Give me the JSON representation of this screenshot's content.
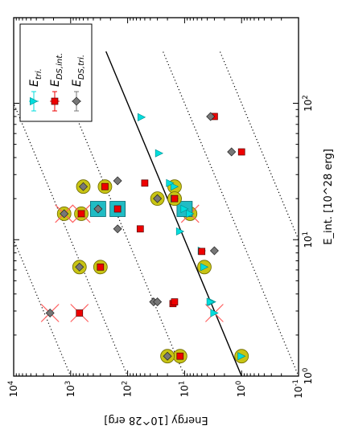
{
  "chart_data": {
    "type": "scatter",
    "title": "",
    "xlabel": "E_int. [10^28 erg]",
    "ylabel": "Energy [10^28 erg]",
    "x_scale": "log",
    "y_scale": "log",
    "xlim": [
      1,
      120
    ],
    "ylim": [
      0.1,
      10000
    ],
    "x_ticks": [
      {
        "value": 1,
        "label": "10^0"
      },
      {
        "value": 10,
        "label": "10^1"
      },
      {
        "value": 100,
        "label": "10^2"
      }
    ],
    "y_ticks": [
      {
        "value": 10000,
        "label": "10^4"
      },
      {
        "value": 1000,
        "label": "10^3"
      },
      {
        "value": 100,
        "label": "10^2"
      },
      {
        "value": 10,
        "label": "10^1"
      },
      {
        "value": 1,
        "label": "10^0"
      },
      {
        "value": 0.1,
        "label": "10^-1"
      }
    ],
    "legend": {
      "placement": "top-left",
      "entries": [
        {
          "series": "tri",
          "label": "E_tri."
        },
        {
          "series": "ds_int",
          "label": "E_DS,int."
        },
        {
          "series": "ds_tri",
          "label": "E_DS,tri."
        }
      ]
    },
    "colors": {
      "tri": "#00dddd",
      "ds_int": "#ee0000",
      "ds_tri": "#777777",
      "circle": "#c8c414",
      "circle_edge": "#6e6a00",
      "box": "#20bcc4",
      "cross": "#ff6060",
      "line": "#000000"
    },
    "reference_lines": {
      "solid_ratio": 1,
      "dotted_ratios": [
        0.01,
        0.1,
        10,
        100,
        1000
      ]
    },
    "series": [
      {
        "id": "tri",
        "points": [
          {
            "x": 1.4,
            "y": 1.0,
            "circle": true
          },
          {
            "x": 2.9,
            "y": 3.0,
            "cross": true
          },
          {
            "x": 3.5,
            "y": 3.3
          },
          {
            "x": 3.5,
            "y": 3.5
          },
          {
            "x": 6.3,
            "y": 4.5,
            "circle": true
          },
          {
            "x": 8.3,
            "y": 5.0
          },
          {
            "x": 11.5,
            "y": 12
          },
          {
            "x": 15.5,
            "y": 8,
            "circle": true,
            "cross": true
          },
          {
            "x": 16.8,
            "y": 10,
            "box": true
          },
          {
            "x": 20,
            "y": 15,
            "circle": true
          },
          {
            "x": 24.5,
            "y": 15,
            "circle": true
          },
          {
            "x": 26,
            "y": 18
          },
          {
            "x": 43,
            "y": 28
          },
          {
            "x": 79,
            "y": 57
          }
        ]
      },
      {
        "id": "ds_int",
        "points": [
          {
            "x": 1.4,
            "y": 12,
            "circle": true
          },
          {
            "x": 2.9,
            "y": 700,
            "cross": true
          },
          {
            "x": 3.4,
            "y": 16
          },
          {
            "x": 3.5,
            "y": 15
          },
          {
            "x": 6.3,
            "y": 300,
            "circle": true
          },
          {
            "x": 8.2,
            "y": 5
          },
          {
            "x": 12,
            "y": 60
          },
          {
            "x": 15.5,
            "y": 650,
            "circle": true,
            "cross": true
          },
          {
            "x": 16.8,
            "y": 150,
            "box": true
          },
          {
            "x": 20,
            "y": 15,
            "circle": true
          },
          {
            "x": 24.5,
            "y": 250,
            "circle": true
          },
          {
            "x": 26,
            "y": 50
          },
          {
            "x": 44,
            "y": 1.0
          },
          {
            "x": 80,
            "y": 3.0
          }
        ]
      },
      {
        "id": "ds_tri",
        "points": [
          {
            "x": 1.4,
            "y": 20,
            "circle": true
          },
          {
            "x": 2.9,
            "y": 2300,
            "cross": true
          },
          {
            "x": 3.5,
            "y": 35
          },
          {
            "x": 3.5,
            "y": 30
          },
          {
            "x": 6.3,
            "y": 700,
            "circle": true
          },
          {
            "x": 8.3,
            "y": 3
          },
          {
            "x": 12,
            "y": 150
          },
          {
            "x": 15.5,
            "y": 1300,
            "circle": true,
            "cross": true
          },
          {
            "x": 16.8,
            "y": 330,
            "box": true
          },
          {
            "x": 20,
            "y": 30,
            "circle": true
          },
          {
            "x": 24.5,
            "y": 600,
            "circle": true
          },
          {
            "x": 27,
            "y": 150
          },
          {
            "x": 44,
            "y": 1.5
          },
          {
            "x": 80,
            "y": 3.5
          }
        ]
      }
    ]
  }
}
